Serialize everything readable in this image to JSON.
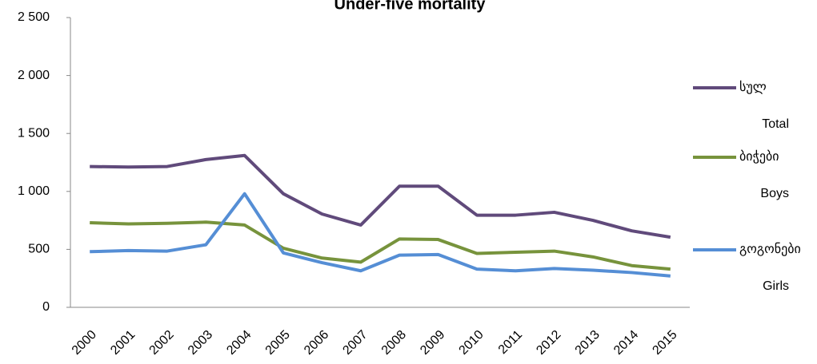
{
  "chart_data": {
    "type": "line",
    "title": "Under-five mortality",
    "categories": [
      "2000",
      "2001",
      "2002",
      "2003",
      "2004",
      "2005",
      "2006",
      "2007",
      "2008",
      "2009",
      "2010",
      "2011",
      "2012",
      "2013",
      "2014",
      "2015"
    ],
    "series": [
      {
        "name": "სულ",
        "name_en": "Total",
        "color": "#604a7b",
        "values": [
          1215,
          1210,
          1215,
          1275,
          1310,
          980,
          805,
          710,
          1045,
          1045,
          795,
          795,
          820,
          750,
          660,
          605
        ]
      },
      {
        "name": "ბიჭები",
        "name_en": "Boys",
        "color": "#77933c",
        "values": [
          730,
          720,
          725,
          735,
          710,
          510,
          425,
          390,
          590,
          585,
          465,
          475,
          485,
          435,
          360,
          330
        ]
      },
      {
        "name": "გოგონები",
        "name_en": "Girls",
        "color": "#558ed5",
        "values": [
          480,
          490,
          485,
          540,
          980,
          470,
          385,
          315,
          450,
          455,
          330,
          315,
          335,
          320,
          300,
          270
        ]
      }
    ],
    "ylim": [
      0,
      2500
    ],
    "yticks": [
      0,
      500,
      {
        "value": 1000,
        "label": "1 000"
      },
      {
        "value": 1500,
        "label": "1 500"
      },
      {
        "value": 2000,
        "label": "2 000"
      },
      {
        "value": 2500,
        "label": "2 500"
      }
    ],
    "grid": false,
    "legend": "right"
  }
}
